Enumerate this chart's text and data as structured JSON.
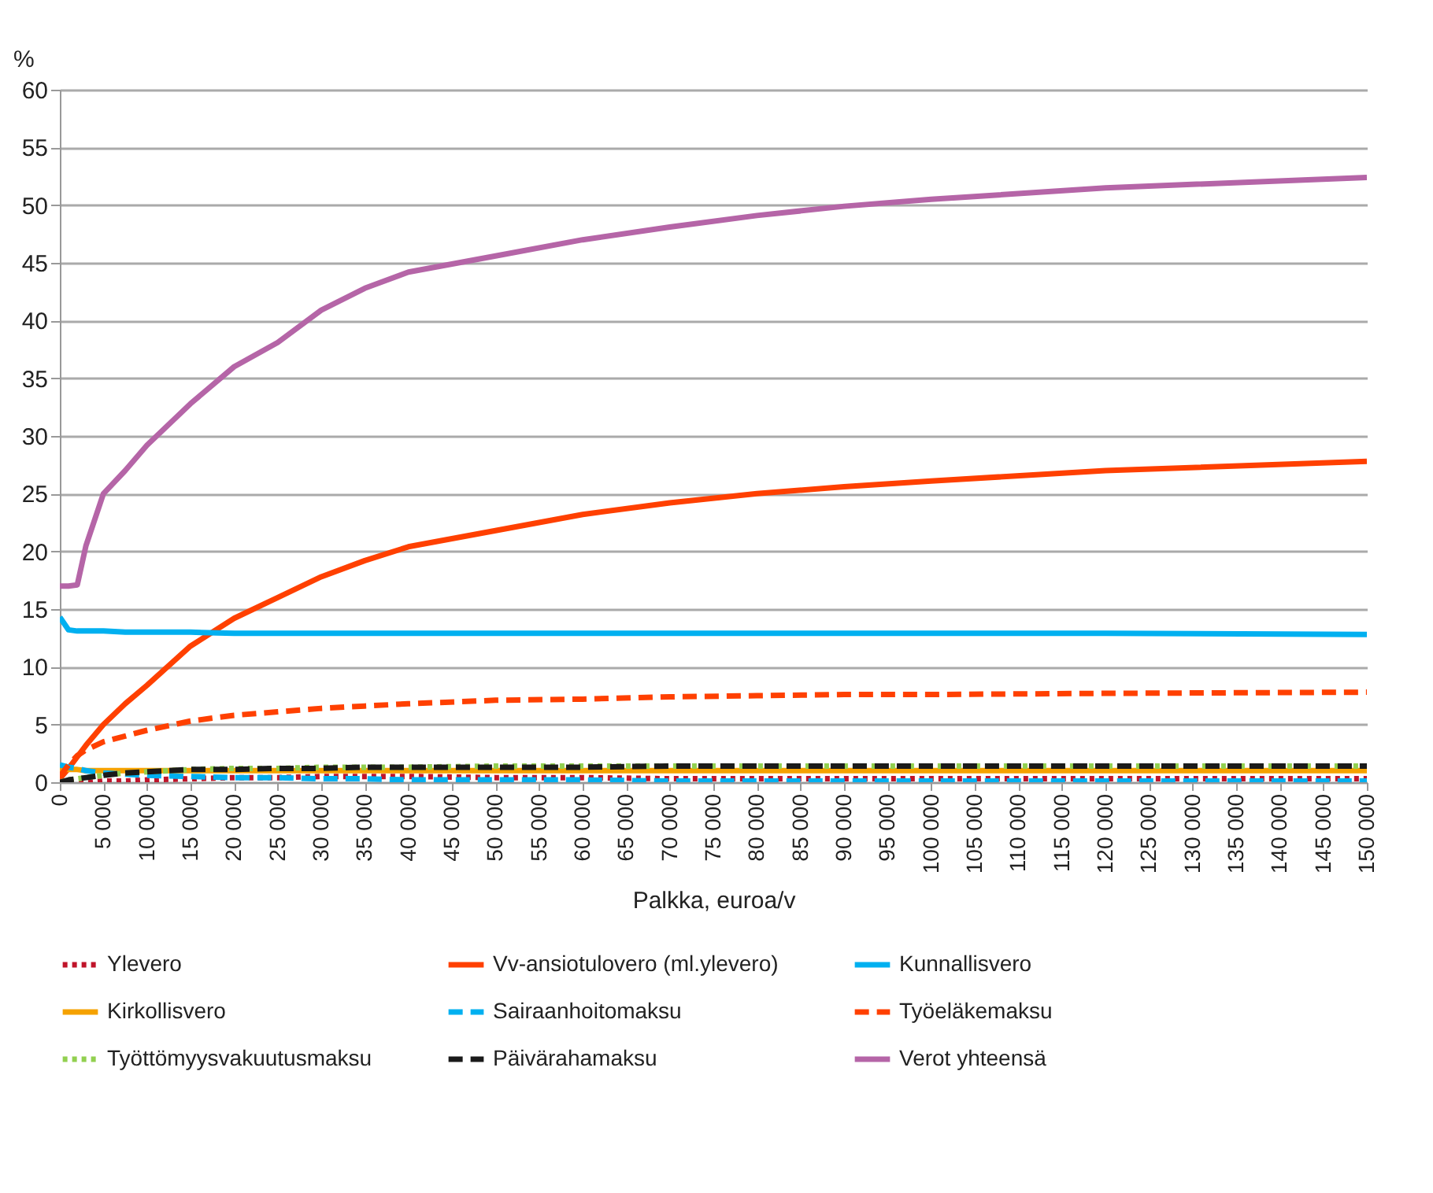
{
  "chart_data": {
    "type": "line",
    "xlabel": "Palkka, euroa/v",
    "ylabel": "%",
    "x": [
      0,
      1000,
      2000,
      3000,
      5000,
      7500,
      10000,
      15000,
      20000,
      25000,
      30000,
      35000,
      40000,
      50000,
      60000,
      70000,
      80000,
      90000,
      100000,
      120000,
      150000
    ],
    "xlim": [
      0,
      150000
    ],
    "xticks": [
      0,
      {
        "value": 5000,
        "label": "5 000"
      },
      {
        "value": 10000,
        "label": "10 000"
      },
      {
        "value": 15000,
        "label": "15 000"
      },
      {
        "value": 20000,
        "label": "20 000"
      },
      {
        "value": 25000,
        "label": "25 000"
      },
      {
        "value": 30000,
        "label": "30 000"
      },
      {
        "value": 35000,
        "label": "35 000"
      },
      {
        "value": 40000,
        "label": "40 000"
      },
      {
        "value": 45000,
        "label": "45 000"
      },
      {
        "value": 50000,
        "label": "50 000"
      },
      {
        "value": 55000,
        "label": "55 000"
      },
      {
        "value": 60000,
        "label": "60 000"
      },
      {
        "value": 65000,
        "label": "65 000"
      },
      {
        "value": 70000,
        "label": "70 000"
      },
      {
        "value": 75000,
        "label": "75 000"
      },
      {
        "value": 80000,
        "label": "80 000"
      },
      {
        "value": 85000,
        "label": "85 000"
      },
      {
        "value": 90000,
        "label": "90 000"
      },
      {
        "value": 95000,
        "label": "95 000"
      },
      {
        "value": 100000,
        "label": "100 000"
      },
      {
        "value": 105000,
        "label": "105 000"
      },
      {
        "value": 110000,
        "label": "110 000"
      },
      {
        "value": 115000,
        "label": "115 000"
      },
      {
        "value": 120000,
        "label": "120 000"
      },
      {
        "value": 125000,
        "label": "125 000"
      },
      {
        "value": 130000,
        "label": "130 000"
      },
      {
        "value": 135000,
        "label": "135 000"
      },
      {
        "value": 140000,
        "label": "140 000"
      },
      {
        "value": 145000,
        "label": "145 000"
      },
      {
        "value": 150000,
        "label": "150 000"
      }
    ],
    "ylim": [
      0,
      60
    ],
    "yticks": [
      0,
      5,
      10,
      15,
      20,
      25,
      30,
      35,
      40,
      45,
      50,
      55,
      60
    ],
    "grid": "y",
    "legend": "bottom",
    "series": [
      {
        "name": "Ylevero",
        "color": "#c0142a",
        "line_style": "dotted",
        "values": [
          0,
          0,
          0,
          0,
          0.1,
          0.1,
          0.2,
          0.3,
          0.4,
          0.4,
          0.5,
          0.5,
          0.5,
          0.4,
          0.4,
          0.3,
          0.3,
          0.3,
          0.3,
          0.3,
          0.3
        ]
      },
      {
        "name": "Vv-ansiotulovero (ml.ylevero)",
        "color": "#ff4000",
        "line_style": "solid",
        "values": [
          0.3,
          1.2,
          2.2,
          3.2,
          5,
          6.8,
          8.4,
          11.8,
          14.2,
          16,
          17.8,
          19.2,
          20.4,
          21.8,
          23.2,
          24.2,
          25,
          25.6,
          26.1,
          27,
          27.8
        ]
      },
      {
        "name": "Kunnallisvero",
        "color": "#00b0f0",
        "line_style": "solid",
        "values": [
          14.3,
          13.2,
          13.1,
          13.1,
          13.1,
          13,
          13,
          13,
          12.9,
          12.9,
          12.9,
          12.9,
          12.9,
          12.9,
          12.9,
          12.9,
          12.9,
          12.9,
          12.9,
          12.9,
          12.8
        ]
      },
      {
        "name": "Kirkollisvero",
        "color": "#f5a200",
        "line_style": "solid",
        "values": [
          1.1,
          1.1,
          1.1,
          1,
          1,
          1,
          1,
          1,
          1,
          1,
          1,
          1,
          1,
          1,
          1,
          1,
          1,
          1,
          1,
          1,
          1
        ]
      },
      {
        "name": "Sairaanhoitomaksu",
        "color": "#00b0f0",
        "line_style": "dashed",
        "values": [
          1.5,
          1.3,
          1.2,
          1,
          0.8,
          0.7,
          0.6,
          0.5,
          0.4,
          0.4,
          0.3,
          0.3,
          0.2,
          0.2,
          0.2,
          0.1,
          0.1,
          0.1,
          0.1,
          0.1,
          0.1
        ]
      },
      {
        "name": "Työeläkemaksu",
        "color": "#ff4000",
        "line_style": "dashed",
        "values": [
          0.5,
          1.5,
          2.3,
          2.8,
          3.5,
          4,
          4.5,
          5.3,
          5.8,
          6.1,
          6.4,
          6.6,
          6.8,
          7.1,
          7.2,
          7.4,
          7.5,
          7.6,
          7.6,
          7.7,
          7.8
        ]
      },
      {
        "name": "Työttömyysvakuutusmaksu",
        "color": "#92d050",
        "line_style": "dotted",
        "values": [
          0,
          0.2,
          0.3,
          0.4,
          0.6,
          0.8,
          0.9,
          1.1,
          1.2,
          1.2,
          1.3,
          1.3,
          1.3,
          1.4,
          1.4,
          1.4,
          1.4,
          1.4,
          1.4,
          1.4,
          1.4
        ]
      },
      {
        "name": "Päivärahamaksu",
        "color": "#1a1a1a",
        "line_style": "dashed",
        "values": [
          0,
          0.2,
          0.3,
          0.4,
          0.6,
          0.8,
          0.9,
          1.1,
          1.1,
          1.2,
          1.2,
          1.3,
          1.3,
          1.3,
          1.3,
          1.4,
          1.4,
          1.4,
          1.4,
          1.4,
          1.4
        ]
      },
      {
        "name": "Verot yhteensä",
        "color": "#b565a7",
        "line_style": "solid",
        "values": [
          17,
          17,
          17.1,
          20.5,
          25,
          27,
          29.2,
          32.8,
          36,
          38.1,
          40.9,
          42.8,
          44.2,
          45.6,
          47,
          48.1,
          49.1,
          49.9,
          50.5,
          51.5,
          52.4
        ]
      }
    ]
  }
}
